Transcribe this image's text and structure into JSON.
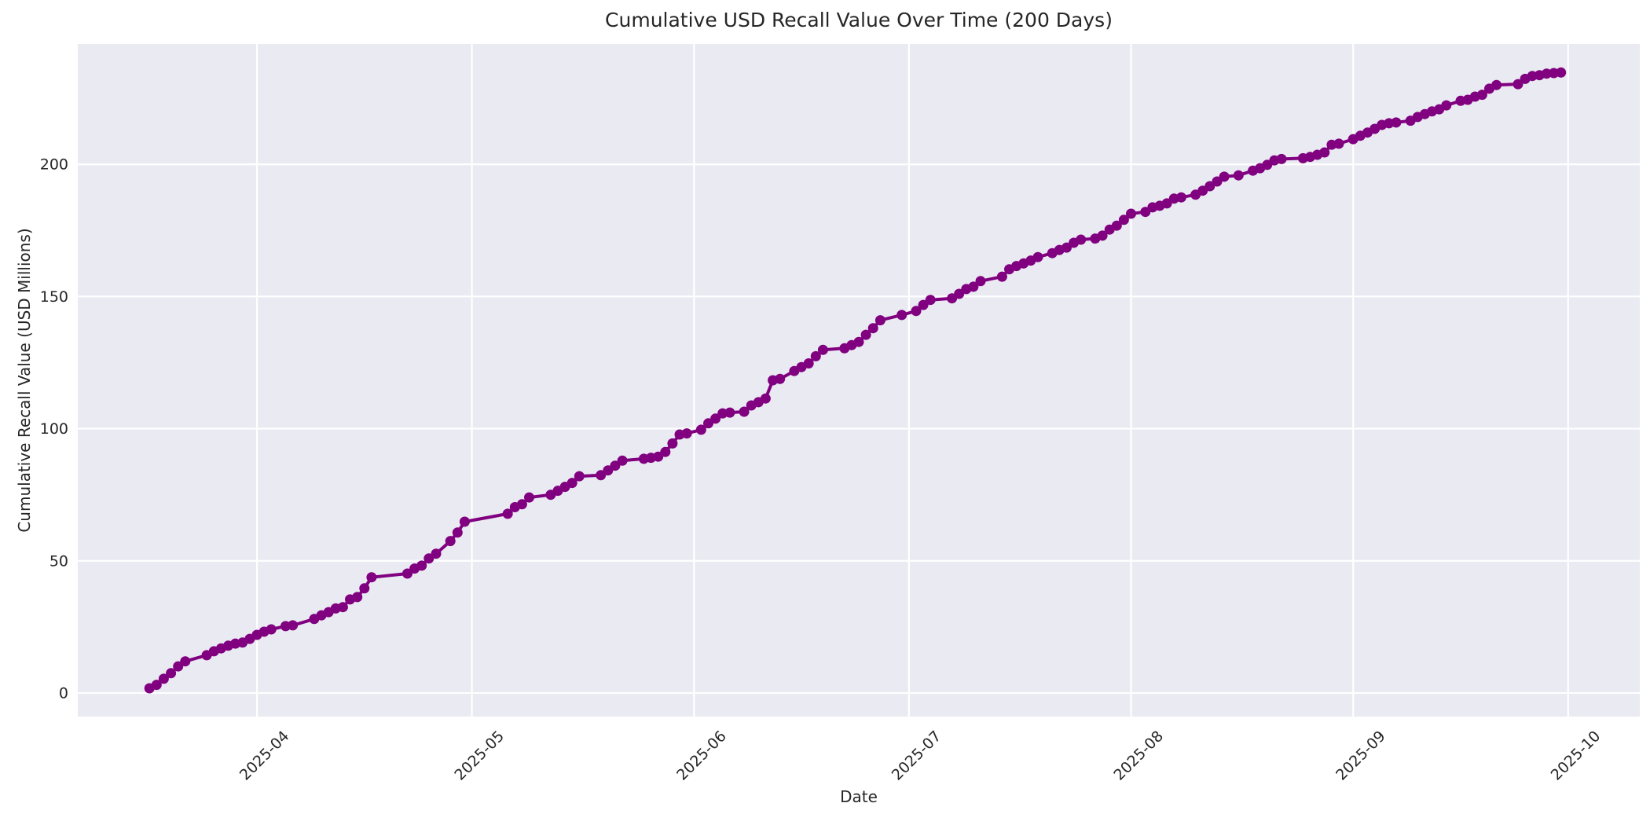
{
  "chart_data": {
    "type": "line",
    "title": "Cumulative USD Recall Value Over Time (200 Days)",
    "xlabel": "Date",
    "ylabel": "Cumulative Recall Value (USD Millions)",
    "grid": true,
    "legend_position": "none",
    "plot_background": "#eaeaf2",
    "grid_color": "#ffffff",
    "line_color": "#800080",
    "marker": "circle",
    "text_color": "#262626",
    "x_ticks": [
      "2025-04",
      "2025-05",
      "2025-06",
      "2025-07",
      "2025-08",
      "2025-09",
      "2025-10"
    ],
    "y_ticks": [
      0,
      50,
      100,
      150,
      200
    ],
    "xlim": [
      "2025-03-07",
      "2025-10-11"
    ],
    "ylim": [
      -8.9,
      245.5
    ],
    "series": [
      {
        "name": "Cumulative USD Recall Value",
        "dates": [
          "2025-03-17",
          "2025-03-18",
          "2025-03-19",
          "2025-03-20",
          "2025-03-21",
          "2025-03-22",
          "2025-03-25",
          "2025-03-26",
          "2025-03-27",
          "2025-03-28",
          "2025-03-29",
          "2025-03-30",
          "2025-03-31",
          "2025-04-01",
          "2025-04-02",
          "2025-04-03",
          "2025-04-05",
          "2025-04-06",
          "2025-04-09",
          "2025-04-10",
          "2025-04-11",
          "2025-04-12",
          "2025-04-13",
          "2025-04-14",
          "2025-04-15",
          "2025-04-16",
          "2025-04-17",
          "2025-04-22",
          "2025-04-23",
          "2025-04-24",
          "2025-04-25",
          "2025-04-26",
          "2025-04-28",
          "2025-04-29",
          "2025-04-30",
          "2025-05-06",
          "2025-05-07",
          "2025-05-08",
          "2025-05-09",
          "2025-05-12",
          "2025-05-13",
          "2025-05-14",
          "2025-05-15",
          "2025-05-16",
          "2025-05-19",
          "2025-05-20",
          "2025-05-21",
          "2025-05-22",
          "2025-05-25",
          "2025-05-26",
          "2025-05-27",
          "2025-05-28",
          "2025-05-29",
          "2025-05-30",
          "2025-05-31",
          "2025-06-02",
          "2025-06-03",
          "2025-06-04",
          "2025-06-05",
          "2025-06-06",
          "2025-06-08",
          "2025-06-09",
          "2025-06-10",
          "2025-06-11",
          "2025-06-12",
          "2025-06-13",
          "2025-06-15",
          "2025-06-16",
          "2025-06-17",
          "2025-06-18",
          "2025-06-19",
          "2025-06-22",
          "2025-06-23",
          "2025-06-24",
          "2025-06-25",
          "2025-06-26",
          "2025-06-27",
          "2025-06-30",
          "2025-07-02",
          "2025-07-03",
          "2025-07-04",
          "2025-07-07",
          "2025-07-08",
          "2025-07-09",
          "2025-07-10",
          "2025-07-11",
          "2025-07-14",
          "2025-07-15",
          "2025-07-16",
          "2025-07-17",
          "2025-07-18",
          "2025-07-19",
          "2025-07-21",
          "2025-07-22",
          "2025-07-23",
          "2025-07-24",
          "2025-07-25",
          "2025-07-27",
          "2025-07-28",
          "2025-07-29",
          "2025-07-30",
          "2025-07-31",
          "2025-08-01",
          "2025-08-03",
          "2025-08-04",
          "2025-08-05",
          "2025-08-06",
          "2025-08-07",
          "2025-08-08",
          "2025-08-10",
          "2025-08-11",
          "2025-08-12",
          "2025-08-13",
          "2025-08-14",
          "2025-08-16",
          "2025-08-18",
          "2025-08-19",
          "2025-08-20",
          "2025-08-21",
          "2025-08-22",
          "2025-08-25",
          "2025-08-26",
          "2025-08-27",
          "2025-08-28",
          "2025-08-29",
          "2025-08-30",
          "2025-09-01",
          "2025-09-02",
          "2025-09-03",
          "2025-09-04",
          "2025-09-05",
          "2025-09-06",
          "2025-09-07",
          "2025-09-09",
          "2025-09-10",
          "2025-09-11",
          "2025-09-12",
          "2025-09-13",
          "2025-09-14",
          "2025-09-16",
          "2025-09-17",
          "2025-09-18",
          "2025-09-19",
          "2025-09-20",
          "2025-09-21",
          "2025-09-24",
          "2025-09-25",
          "2025-09-26",
          "2025-09-27",
          "2025-09-28",
          "2025-09-29",
          "2025-09-30"
        ],
        "values": [
          1.8,
          3.1,
          5.4,
          7.5,
          10.1,
          12.0,
          14.3,
          15.8,
          16.9,
          17.9,
          18.7,
          19.1,
          20.5,
          22.0,
          23.2,
          24.1,
          25.3,
          25.6,
          28.0,
          29.4,
          30.6,
          32.0,
          32.5,
          35.4,
          36.3,
          39.6,
          43.8,
          45.2,
          47.1,
          48.2,
          50.9,
          52.7,
          57.5,
          60.7,
          64.8,
          67.8,
          70.3,
          71.4,
          74.0,
          75.0,
          76.5,
          78.0,
          79.5,
          82.0,
          82.4,
          84.2,
          86.0,
          87.9,
          88.6,
          89.0,
          89.4,
          91.2,
          94.4,
          97.8,
          98.2,
          99.6,
          102.0,
          103.8,
          105.8,
          106.1,
          106.4,
          108.8,
          110.0,
          111.4,
          118.3,
          118.8,
          121.8,
          123.3,
          124.7,
          127.4,
          129.8,
          130.4,
          131.6,
          132.8,
          135.5,
          138.0,
          141.0,
          143.0,
          144.5,
          146.8,
          148.7,
          149.3,
          151.0,
          152.8,
          153.7,
          155.8,
          157.5,
          160.3,
          161.5,
          162.5,
          163.6,
          164.9,
          166.4,
          167.6,
          168.5,
          170.3,
          171.5,
          171.9,
          173.0,
          175.3,
          176.8,
          179.0,
          181.3,
          182.0,
          183.7,
          184.3,
          185.2,
          187.0,
          187.5,
          188.5,
          190.0,
          191.7,
          193.5,
          195.3,
          195.8,
          197.6,
          198.5,
          199.8,
          201.5,
          202.0,
          202.3,
          202.8,
          203.6,
          204.5,
          207.4,
          207.8,
          209.5,
          210.8,
          212.0,
          213.4,
          214.9,
          215.5,
          215.8,
          216.5,
          217.9,
          219.0,
          220.0,
          220.8,
          222.3,
          224.0,
          224.4,
          225.6,
          226.3,
          228.6,
          230.0,
          230.3,
          232.3,
          233.4,
          233.7,
          234.3,
          234.5,
          234.7
        ]
      }
    ]
  }
}
